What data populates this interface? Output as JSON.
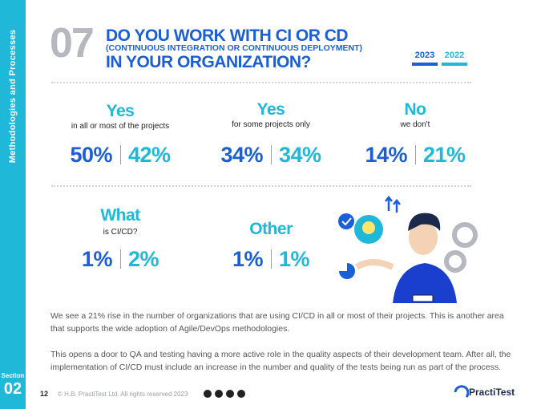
{
  "sidebar": {
    "section_label": "Methodologies and Processes",
    "section_word": "Section",
    "section_number": "02"
  },
  "header": {
    "number": "07",
    "title_line1": "DO YOU WORK WITH CI OR CD",
    "title_sub": "(CONTINUOUS INTEGRATION OR CONTINUOUS DEPLOYMENT)",
    "title_line2": "IN YOUR ORGANIZATION?",
    "legend": [
      {
        "label": "2023",
        "color": "#1a5fd6"
      },
      {
        "label": "2022",
        "color": "#1fb8d9"
      }
    ]
  },
  "answers": [
    {
      "label": "Yes",
      "detail": "in all or most of the projects",
      "value_2023": "50%",
      "value_2022": "42%"
    },
    {
      "label": "Yes",
      "detail": "for some projects only",
      "value_2023": "34%",
      "value_2022": "34%"
    },
    {
      "label": "No",
      "detail": "we don't",
      "value_2023": "14%",
      "value_2022": "21%"
    },
    {
      "label": "What",
      "detail": "is CI/CD?",
      "value_2023": "1%",
      "value_2022": "2%"
    },
    {
      "label": "Other",
      "value_2023": "1%",
      "value_2022": "1%"
    }
  ],
  "body": {
    "paragraphs": [
      "We see a 21% rise in the number of organizations that are using CI/CD in all or most of their projects. This is another area that supports the wide adoption of Agile/DevOps methodologies.",
      "This opens a door to QA and testing having a more active role in the quality aspects of their development team. After all, the implementation of CI/CD must include an increase in the number and quality of the tests being run as part of the process."
    ]
  },
  "footer": {
    "page": "12",
    "copyright": "© H.B. PractiTest Ltd. All rights reserved 2023",
    "logo": "PractiTest"
  }
}
